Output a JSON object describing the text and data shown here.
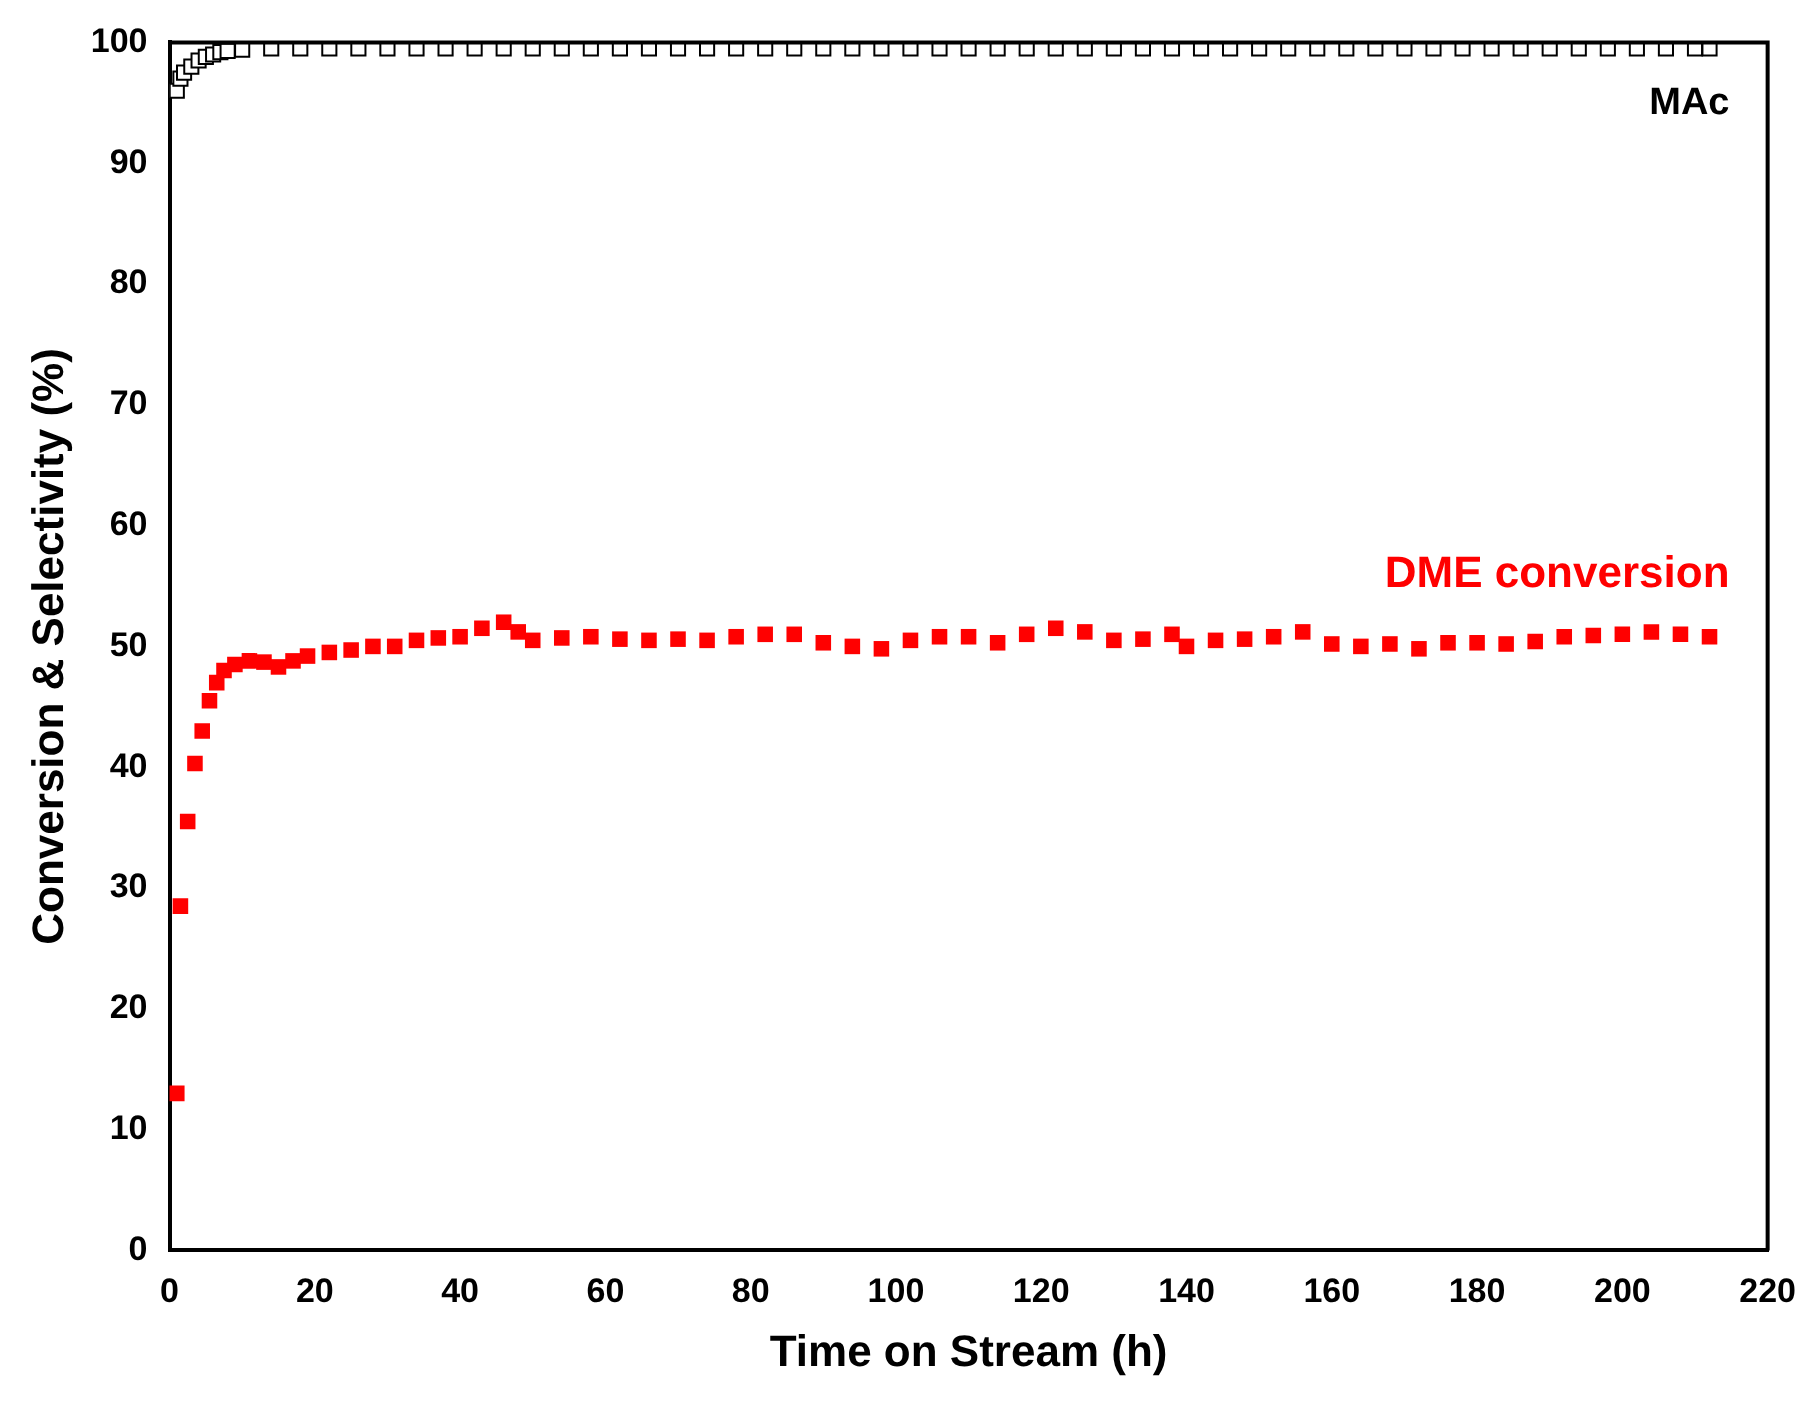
{
  "chart_data": {
    "type": "scatter",
    "xlabel": "Time on Stream (h)",
    "ylabel": "Conversion & Selectivity (%)",
    "xlim": [
      0,
      220
    ],
    "ylim": [
      0,
      100
    ],
    "xticks": [
      0,
      20,
      40,
      60,
      80,
      100,
      120,
      140,
      160,
      180,
      200,
      220
    ],
    "yticks": [
      0,
      10,
      20,
      30,
      40,
      50,
      60,
      70,
      80,
      90,
      100
    ],
    "grid": false,
    "legend": false,
    "marker": "square",
    "series": [
      {
        "name": "MAc",
        "color": "#000000",
        "x": [
          1,
          1.5,
          2,
          3,
          4,
          5,
          6,
          7,
          8,
          10,
          14,
          18,
          22,
          26,
          30,
          34,
          38,
          42,
          46,
          50,
          54,
          58,
          62,
          66,
          70,
          74,
          78,
          82,
          86,
          90,
          94,
          98,
          102,
          106,
          110,
          114,
          118,
          122,
          126,
          130,
          134,
          138,
          142,
          146,
          150,
          154,
          158,
          162,
          166,
          170,
          174,
          178,
          182,
          186,
          190,
          194,
          198,
          202,
          206,
          210,
          212
        ],
        "values": [
          96,
          97,
          97.5,
          98,
          98.5,
          98.8,
          99,
          99.2,
          99.3,
          99.4,
          99.5,
          99.5,
          99.5,
          99.5,
          99.5,
          99.5,
          99.5,
          99.5,
          99.5,
          99.5,
          99.5,
          99.5,
          99.5,
          99.5,
          99.5,
          99.5,
          99.5,
          99.5,
          99.5,
          99.5,
          99.5,
          99.5,
          99.5,
          99.5,
          99.5,
          99.5,
          99.5,
          99.5,
          99.5,
          99.5,
          99.5,
          99.5,
          99.5,
          99.5,
          99.5,
          99.5,
          99.5,
          99.5,
          99.5,
          99.5,
          99.5,
          99.5,
          99.5,
          99.5,
          99.5,
          99.5,
          99.5,
          99.5,
          99.5,
          99.5,
          99.5
        ]
      },
      {
        "name": "DME conversion",
        "color": "#ff0000",
        "x": [
          1,
          1.5,
          2.5,
          3.5,
          4.5,
          5.5,
          6.5,
          7.5,
          9,
          11,
          13,
          15,
          17,
          19,
          22,
          25,
          28,
          31,
          34,
          37,
          40,
          43,
          46,
          48,
          50,
          54,
          58,
          62,
          66,
          70,
          74,
          78,
          82,
          86,
          90,
          94,
          98,
          102,
          106,
          110,
          114,
          118,
          122,
          126,
          130,
          134,
          138,
          140,
          144,
          148,
          152,
          156,
          160,
          164,
          168,
          172,
          176,
          180,
          184,
          188,
          192,
          196,
          200,
          204,
          208,
          212
        ],
        "values": [
          13,
          28.5,
          35.5,
          40.3,
          43,
          45.5,
          47,
          48,
          48.5,
          48.8,
          48.7,
          48.3,
          48.8,
          49.2,
          49.5,
          49.7,
          50,
          50,
          50.5,
          50.7,
          50.8,
          51.5,
          52,
          51.2,
          50.5,
          50.7,
          50.8,
          50.6,
          50.5,
          50.6,
          50.5,
          50.8,
          51,
          51,
          50.3,
          50,
          49.8,
          50.5,
          50.8,
          50.8,
          50.3,
          51,
          51.5,
          51.2,
          50.5,
          50.6,
          51,
          50,
          50.5,
          50.6,
          50.8,
          51.2,
          50.2,
          50,
          50.2,
          49.8,
          50.3,
          50.3,
          50.2,
          50.4,
          50.8,
          50.9,
          51,
          51.2,
          51,
          50.8
        ]
      }
    ]
  }
}
